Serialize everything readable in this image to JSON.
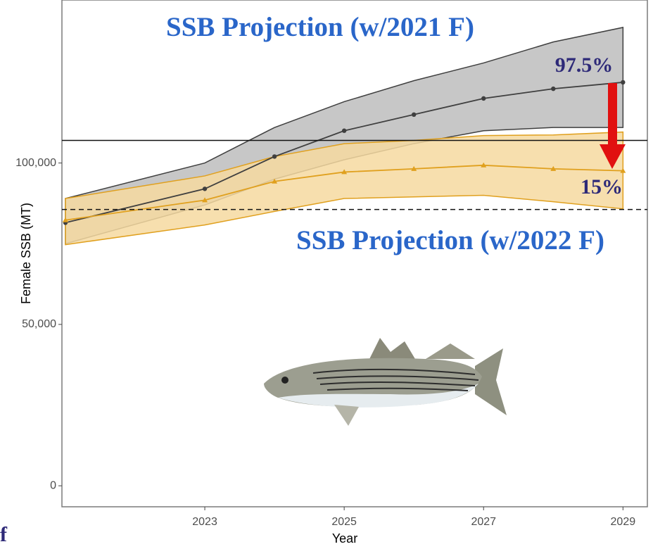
{
  "chart_data": {
    "type": "band-line",
    "x_label": "Year",
    "y_label": "Female SSB (MT)",
    "x": [
      2021,
      2023,
      2024,
      2025,
      2026,
      2027,
      2028,
      2029
    ],
    "xlim": [
      2020.95,
      2029.35
    ],
    "xticks": [
      2023,
      2025,
      2027,
      2029
    ],
    "ylim": [
      -6500,
      150500
    ],
    "yticks": [
      0,
      {
        "value": 50000,
        "label": "50,000"
      },
      {
        "value": 100000,
        "label": "100,000"
      }
    ],
    "series": [
      {
        "color": "#3f3f3f",
        "band_color": "#bdbdbd",
        "marker": "circle",
        "values": [
          81500,
          92000,
          102000,
          110000,
          115000,
          120000,
          123000,
          125000
        ],
        "lower": [
          75000,
          87000,
          95000,
          101000,
          106000,
          110000,
          111000,
          111000
        ],
        "upper": [
          89000,
          100000,
          111000,
          119000,
          125500,
          131000,
          137500,
          142000
        ]
      },
      {
        "color": "#e0a01e",
        "band_color": "#f6d9a0",
        "marker": "triangle",
        "values": [
          82300,
          88500,
          94300,
          97200,
          98200,
          99300,
          98200,
          97600
        ],
        "lower": [
          74700,
          80800,
          85000,
          89000,
          89500,
          90000,
          88000,
          85800
        ],
        "upper": [
          89000,
          96000,
          102000,
          106000,
          107000,
          108500,
          108700,
          109600
        ]
      }
    ],
    "reference_lines": [
      {
        "value": 107000,
        "style": "solid"
      },
      {
        "value": 85600,
        "style": "dashed"
      }
    ],
    "annotations": [
      "SSB Projection (w/2021 F)",
      "97.5%",
      "15%",
      "SSB Projection (w/2022 F)"
    ],
    "corner_text": "f"
  }
}
